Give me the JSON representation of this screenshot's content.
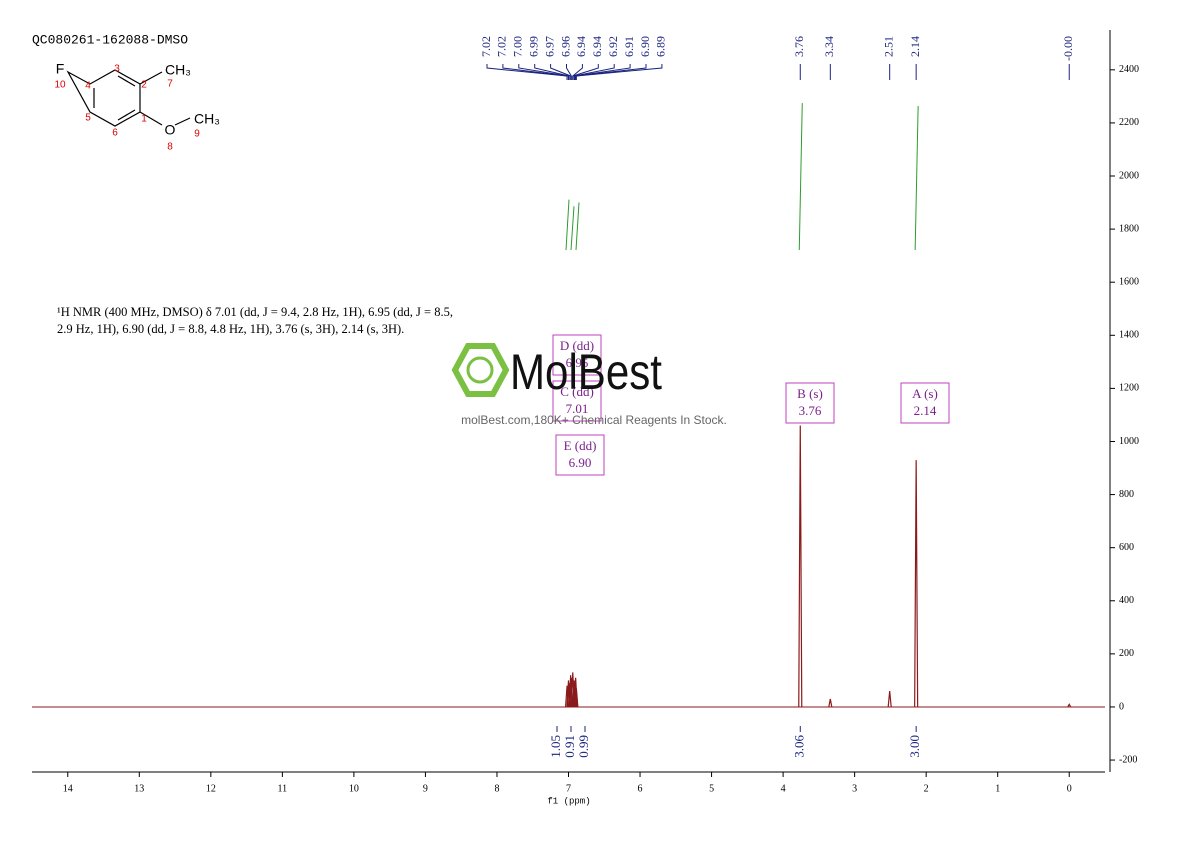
{
  "chart_data": {
    "type": "nmr",
    "title": "QC080261-162088-DMSO",
    "x_label": "f1 (ppm)",
    "xlim": [
      14.5,
      -0.5
    ],
    "xticks": [
      14,
      13,
      12,
      11,
      10,
      9,
      8,
      7,
      6,
      5,
      4,
      3,
      2,
      1,
      0
    ],
    "ylim": [
      -245,
      2550
    ],
    "yticks": [
      -200,
      0,
      200,
      400,
      600,
      800,
      1000,
      1200,
      1400,
      1600,
      1800,
      2000,
      2200,
      2400
    ],
    "color": "#8b1a1a",
    "x": [
      7.02,
      7.0,
      6.99,
      6.97,
      6.96,
      6.94,
      6.92,
      6.91,
      6.9,
      6.89,
      3.76,
      3.34,
      2.51,
      2.14,
      0
    ],
    "values": [
      80,
      100,
      90,
      120,
      110,
      130,
      100,
      90,
      110,
      70,
      1060,
      30,
      60,
      930,
      10
    ],
    "peak_labels": [
      {
        "value": 7.02,
        "label": "7.02"
      },
      {
        "value": 7.02,
        "label": "7.02"
      },
      {
        "value": 7.0,
        "label": "7.00"
      },
      {
        "value": 6.99,
        "label": "6.99"
      },
      {
        "value": 6.97,
        "label": "6.97"
      },
      {
        "value": 6.96,
        "label": "6.96"
      },
      {
        "value": 6.94,
        "label": "6.94"
      },
      {
        "value": 6.94,
        "label": "6.94"
      },
      {
        "value": 6.92,
        "label": "6.92"
      },
      {
        "value": 6.91,
        "label": "6.91"
      },
      {
        "value": 6.9,
        "label": "6.90"
      },
      {
        "value": 6.89,
        "label": "6.89"
      },
      {
        "value": 3.76,
        "label": "3.76"
      },
      {
        "value": 3.34,
        "label": "3.34"
      },
      {
        "value": 2.51,
        "label": "2.51"
      },
      {
        "value": 2.14,
        "label": "2.14"
      },
      {
        "value": 0,
        "label": "-0.00"
      }
    ],
    "integrals": {
      "x": [
        7.01,
        6.95,
        6.9,
        3.76,
        2.14
      ],
      "values": [
        1.05,
        0.91,
        0.99,
        3.06,
        3.0
      ],
      "value_labels": [
        "1.05",
        "0.91",
        "0.99",
        "3.06",
        "3.00"
      ]
    },
    "multiplets": [
      {
        "name": "D (dd)",
        "shift": "6.95"
      },
      {
        "name": "C (dd)",
        "shift": "7.01"
      },
      {
        "name": "E (dd)",
        "shift": "6.90"
      },
      {
        "name": "B (s)",
        "shift": "3.76"
      },
      {
        "name": "A (s)",
        "shift": "2.14"
      }
    ],
    "annotation": [
      "¹H NMR (400 MHz, DMSO) δ 7.01 (dd, J = 9.4, 2.8 Hz, 1H), 6.95 (dd, J = 8.5,",
      "2.9 Hz, 1H), 6.90 (dd, J = 8.8, 4.8 Hz, 1H), 3.76 (s, 3H), 2.14 (s, 3H)."
    ],
    "watermark": {
      "brand": "MolBest",
      "slogan": "molBest.com,180K+ Chemical Reagents In Stock."
    },
    "structure": {
      "atoms": [
        "F",
        "CH₃",
        "O",
        "CH₃"
      ],
      "numbers": [
        "1",
        "2",
        "3",
        "4",
        "5",
        "6",
        "7",
        "8",
        "9",
        "10"
      ]
    }
  }
}
